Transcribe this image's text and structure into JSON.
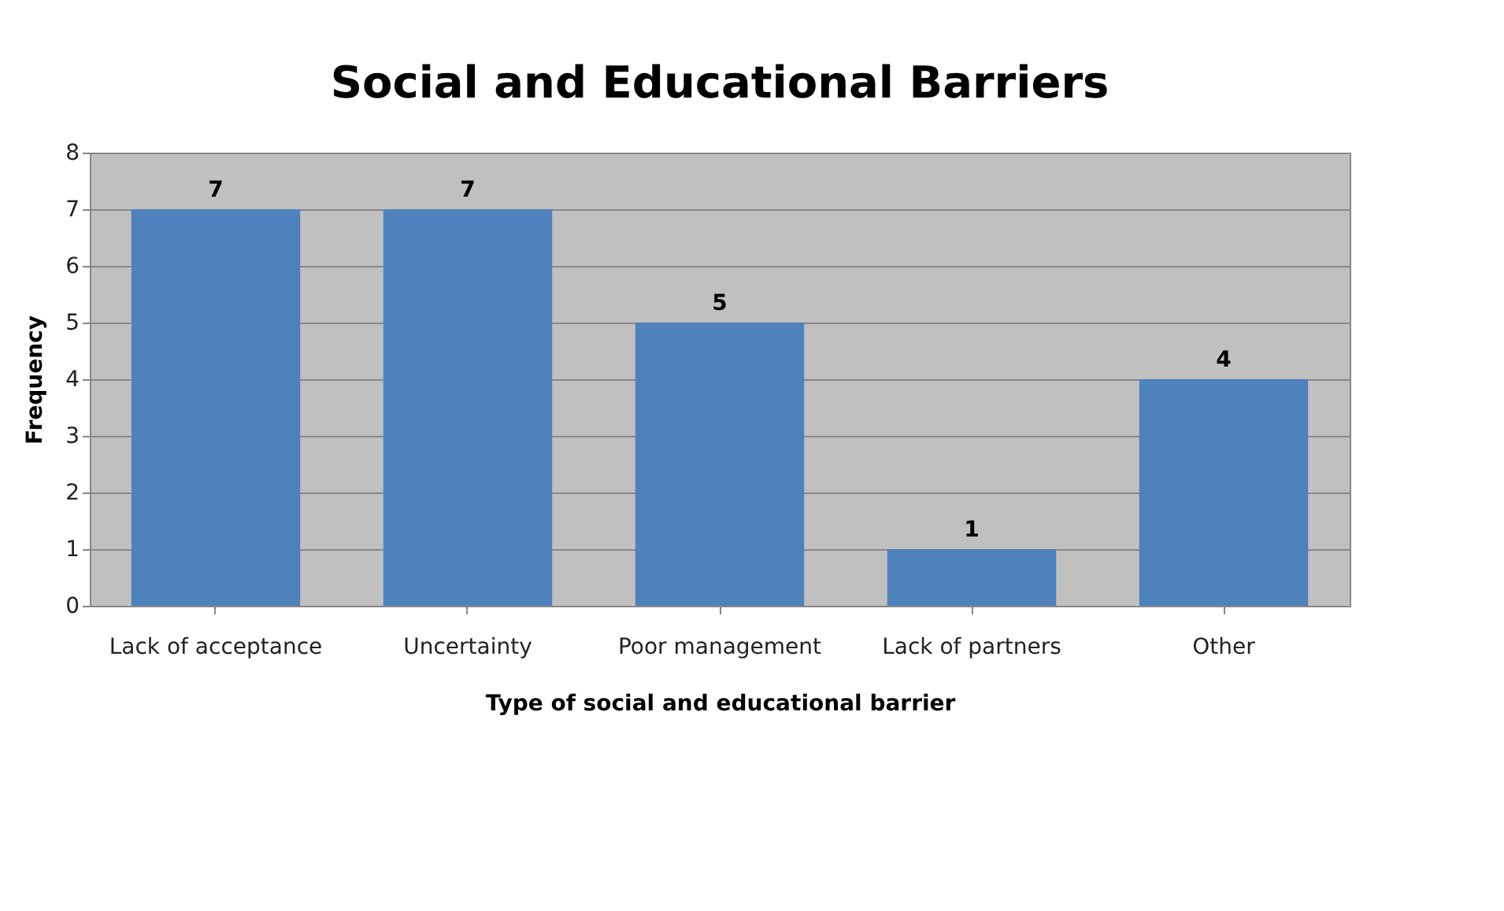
{
  "chart_data": {
    "type": "bar",
    "title": "Social and Educational Barriers",
    "xlabel": "Type of social and educational barrier",
    "ylabel": "Frequency",
    "categories": [
      "Lack of acceptance",
      "Uncertainty",
      "Poor management",
      "Lack of partners",
      "Other"
    ],
    "values": [
      7,
      7,
      5,
      1,
      4
    ],
    "color": "#4f81bd",
    "ylim": [
      0,
      8
    ],
    "yticks": [
      0,
      1,
      2,
      3,
      4,
      5,
      6,
      7,
      8
    ],
    "grid": "y",
    "data_labels": true
  }
}
